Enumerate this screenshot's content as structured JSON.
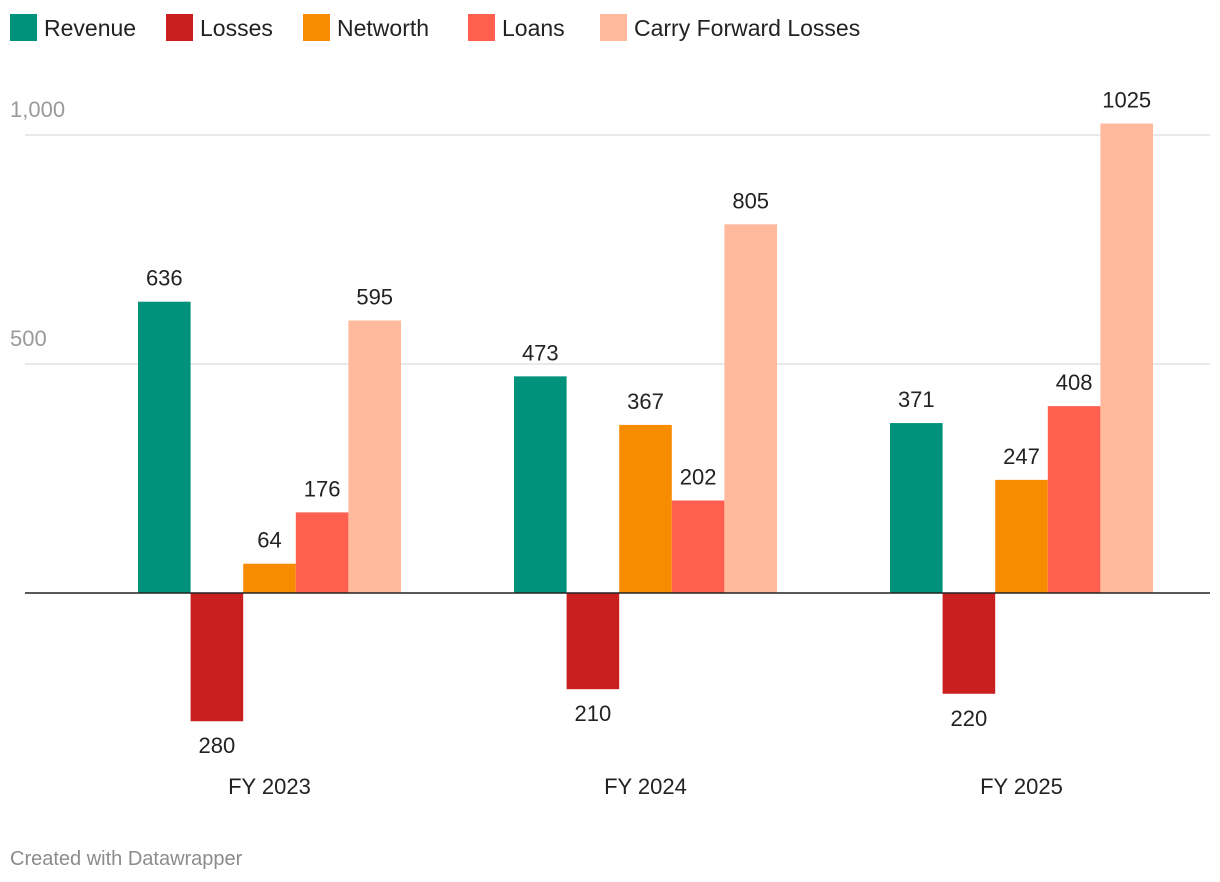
{
  "chart_data": {
    "type": "bar",
    "categories": [
      "FY 2023",
      "FY 2024",
      "FY 2025"
    ],
    "series": [
      {
        "name": "Revenue",
        "color": "#00927a",
        "values": [
          636,
          473,
          371
        ],
        "labels": [
          "636",
          "473",
          "371"
        ]
      },
      {
        "name": "Losses",
        "color": "#c91f1f",
        "values": [
          -280,
          -210,
          -220
        ],
        "labels": [
          "280",
          "210",
          "220"
        ]
      },
      {
        "name": "Networth",
        "color": "#f78c00",
        "values": [
          64,
          367,
          247
        ],
        "labels": [
          "64",
          "367",
          "247"
        ]
      },
      {
        "name": "Loans",
        "color": "#ff5f4f",
        "values": [
          176,
          202,
          408
        ],
        "labels": [
          "176",
          "202",
          "408"
        ]
      },
      {
        "name": "Carry Forward Losses",
        "color": "#ffba9e",
        "values": [
          595,
          805,
          1025
        ],
        "labels": [
          "595",
          "805",
          "1025"
        ]
      }
    ],
    "yticks": [
      {
        "value": 500,
        "label": "500"
      },
      {
        "value": 1000,
        "label": "1,000"
      }
    ],
    "ylim": [
      -280,
      1025
    ],
    "grid": true,
    "legend": "top-left",
    "credit": "Created with Datawrapper"
  }
}
